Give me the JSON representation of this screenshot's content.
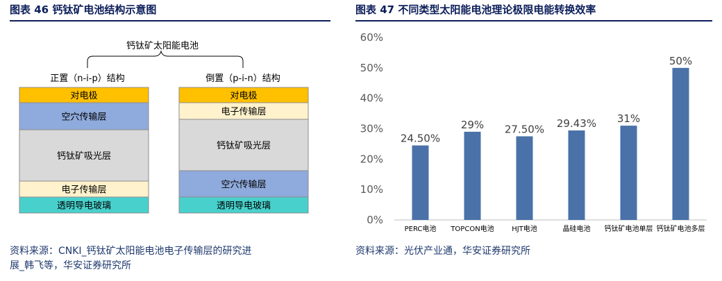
{
  "left": {
    "title": "图表 46 钙钛矿电池结构示意图",
    "source_line1": "资料来源：CNKI_钙钛矿太阳能电池电子传输层的研究进",
    "source_line2": "展_韩飞等，华安证券研究所",
    "diagram": {
      "top_label": "钙钛矿太阳能电池",
      "stack_left": {
        "label": "正置（n-i-p）结构",
        "layers": [
          "对电极",
          "空穴传输层",
          "钙钛矿吸光层",
          "电子传输层",
          "透明导电玻璃"
        ]
      },
      "stack_right": {
        "label": "倒置（p-i-n）结构",
        "layers": [
          "对电极",
          "电子传输层",
          "钙钛矿吸光层",
          "空穴传输层",
          "透明导电玻璃"
        ]
      },
      "layer_colors": {
        "对电极": "#ffc000",
        "空穴传输层": "#8faadc",
        "钙钛矿吸光层": "#d9d9d9",
        "电子传输层": "#fff2cc",
        "透明导电玻璃": "#48d1cc"
      }
    }
  },
  "right": {
    "title": "图表 47 不同类型太阳能电池理论极限电能转换效率",
    "source": "资料来源：光伏产业通，华安证券研究所",
    "chart_data": {
      "type": "bar",
      "categories": [
        "PERC电池",
        "TOPCON电池",
        "HJT电池",
        "晶硅电池",
        "钙钛矿电池单层",
        "钙钛矿电池多层"
      ],
      "values": [
        24.5,
        29,
        27.5,
        29.43,
        31,
        50
      ],
      "data_labels": [
        "24.50%",
        "29%",
        "27.50%",
        "29.43%",
        "31%",
        "50%"
      ],
      "yticks": [
        "0%",
        "10%",
        "20%",
        "30%",
        "40%",
        "50%",
        "60%"
      ],
      "ylim": [
        0,
        60
      ],
      "bar_color": "#4a72a8",
      "grid": false,
      "legend": "none"
    }
  }
}
